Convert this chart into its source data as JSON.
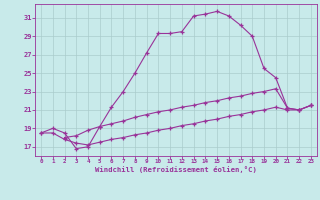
{
  "bg_color": "#c8eaea",
  "line_color": "#993399",
  "grid_color": "#aacccc",
  "xlabel": "Windchill (Refroidissement éolien,°C)",
  "x_ticks": [
    0,
    1,
    2,
    3,
    4,
    5,
    6,
    7,
    8,
    9,
    10,
    11,
    12,
    13,
    14,
    15,
    16,
    17,
    18,
    19,
    20,
    21,
    22,
    23
  ],
  "y_ticks": [
    17,
    19,
    21,
    23,
    25,
    27,
    29,
    31
  ],
  "xlim": [
    -0.5,
    23.5
  ],
  "ylim": [
    16.0,
    32.5
  ],
  "series1_x": [
    0,
    1,
    2,
    3,
    4,
    5,
    6,
    7,
    8,
    9,
    10,
    11,
    12,
    13,
    14,
    15,
    16,
    17,
    18,
    19,
    20,
    21,
    22,
    23
  ],
  "series1_y": [
    18.5,
    19.0,
    18.5,
    16.8,
    17.0,
    19.2,
    21.3,
    23.0,
    25.0,
    27.2,
    29.3,
    29.3,
    29.5,
    31.2,
    31.4,
    31.7,
    31.2,
    30.2,
    29.0,
    25.5,
    24.5,
    21.2,
    21.0,
    21.5
  ],
  "series2_x": [
    2,
    3,
    4,
    5,
    6,
    7,
    8,
    9,
    10,
    11,
    12,
    13,
    14,
    15,
    16,
    17,
    18,
    19,
    20,
    21,
    22,
    23
  ],
  "series2_y": [
    18.0,
    18.2,
    18.8,
    19.2,
    19.5,
    19.8,
    20.2,
    20.5,
    20.8,
    21.0,
    21.3,
    21.5,
    21.8,
    22.0,
    22.3,
    22.5,
    22.8,
    23.0,
    23.3,
    21.2,
    21.0,
    21.5
  ],
  "series3_x": [
    0,
    1,
    2,
    3,
    4,
    5,
    6,
    7,
    8,
    9,
    10,
    11,
    12,
    13,
    14,
    15,
    16,
    17,
    18,
    19,
    20,
    21,
    22,
    23
  ],
  "series3_y": [
    18.5,
    18.5,
    17.8,
    17.4,
    17.2,
    17.5,
    17.8,
    18.0,
    18.3,
    18.5,
    18.8,
    19.0,
    19.3,
    19.5,
    19.8,
    20.0,
    20.3,
    20.5,
    20.8,
    21.0,
    21.3,
    21.0,
    21.0,
    21.5
  ]
}
